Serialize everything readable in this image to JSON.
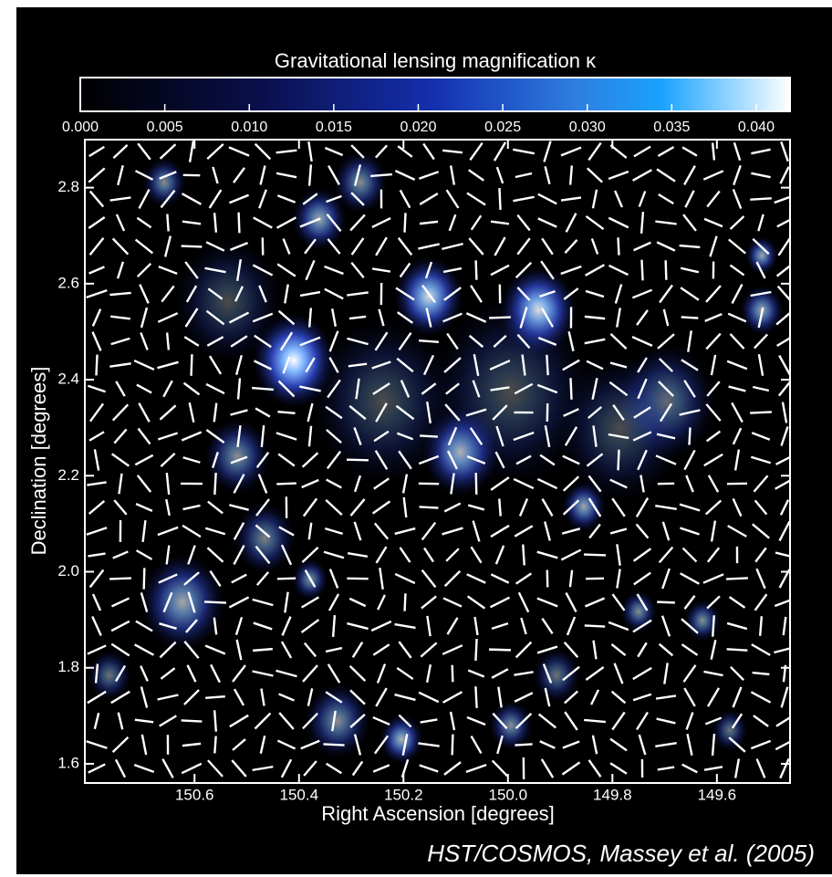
{
  "chart_data": {
    "type": "heatmap",
    "colorbar_title": "Gravitational lensing magnification κ",
    "clim": [
      0,
      0.042
    ],
    "cticks": [
      {
        "value": 0,
        "label": "0.000"
      },
      {
        "value": 0.005,
        "label": "0.005"
      },
      {
        "value": 0.01,
        "label": "0.010"
      },
      {
        "value": 0.015,
        "label": "0.015"
      },
      {
        "value": 0.02,
        "label": "0.020"
      },
      {
        "value": 0.025,
        "label": "0.025"
      },
      {
        "value": 0.03,
        "label": "0.030"
      },
      {
        "value": 0.035,
        "label": "0.035"
      },
      {
        "value": 0.04,
        "label": "0.040"
      }
    ],
    "colormap": [
      "#000000",
      "#0a0f4a",
      "#1530b0",
      "#2e7fe0",
      "#1aa3ff",
      "#ffffff"
    ],
    "x_label": "Right Ascension [degrees]",
    "y_label": "Declination [degrees]",
    "xlim": [
      150.81,
      149.46
    ],
    "ylim": [
      1.56,
      2.9
    ],
    "xticks": [
      150.6,
      150.4,
      150.2,
      {
        "value": 150,
        "label": "150.0"
      },
      149.8,
      149.6
    ],
    "yticks": [
      1.6,
      1.8,
      {
        "value": 2,
        "label": "2.0"
      },
      2.2,
      2.4,
      2.6,
      2.8
    ],
    "caption": "HST/COSMOS, Massey et al. (2005)"
  }
}
